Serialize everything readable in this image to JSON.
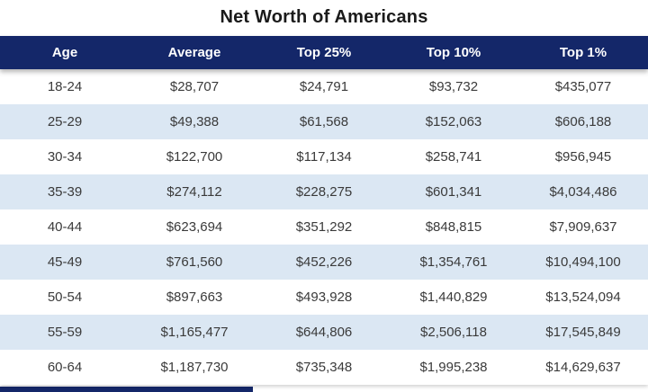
{
  "title": "Net Worth of Americans",
  "chart_data": {
    "type": "table",
    "title": "Net Worth of Americans",
    "columns": [
      "Age",
      "Average",
      "Top 25%",
      "Top 10%",
      "Top 1%"
    ],
    "rows": [
      [
        "18-24",
        "$28,707",
        "$24,791",
        "$93,732",
        "$435,077"
      ],
      [
        "25-29",
        "$49,388",
        "$61,568",
        "$152,063",
        "$606,188"
      ],
      [
        "30-34",
        "$122,700",
        "$117,134",
        "$258,741",
        "$956,945"
      ],
      [
        "35-39",
        "$274,112",
        "$228,275",
        "$601,341",
        "$4,034,486"
      ],
      [
        "40-44",
        "$623,694",
        "$351,292",
        "$848,815",
        "$7,909,637"
      ],
      [
        "45-49",
        "$761,560",
        "$452,226",
        "$1,354,761",
        "$10,494,100"
      ],
      [
        "50-54",
        "$897,663",
        "$493,928",
        "$1,440,829",
        "$13,524,094"
      ],
      [
        "55-59",
        "$1,165,477",
        "$644,806",
        "$2,506,118",
        "$17,545,849"
      ],
      [
        "60-64",
        "$1,187,730",
        "$735,348",
        "$1,995,238",
        "$14,629,637"
      ]
    ],
    "layout": {
      "alternating_row_shading": true,
      "first_row_shaded": false,
      "text_alignment": "center"
    }
  },
  "colors": {
    "page_bg": "#ffffff",
    "header_bg": "#142769",
    "header_text": "#ffffff",
    "row_bg": "#ffffff",
    "row_alt_bg": "#dbe7f3",
    "body_text": "#3a3a3a",
    "title_text": "#1a1a1a"
  }
}
